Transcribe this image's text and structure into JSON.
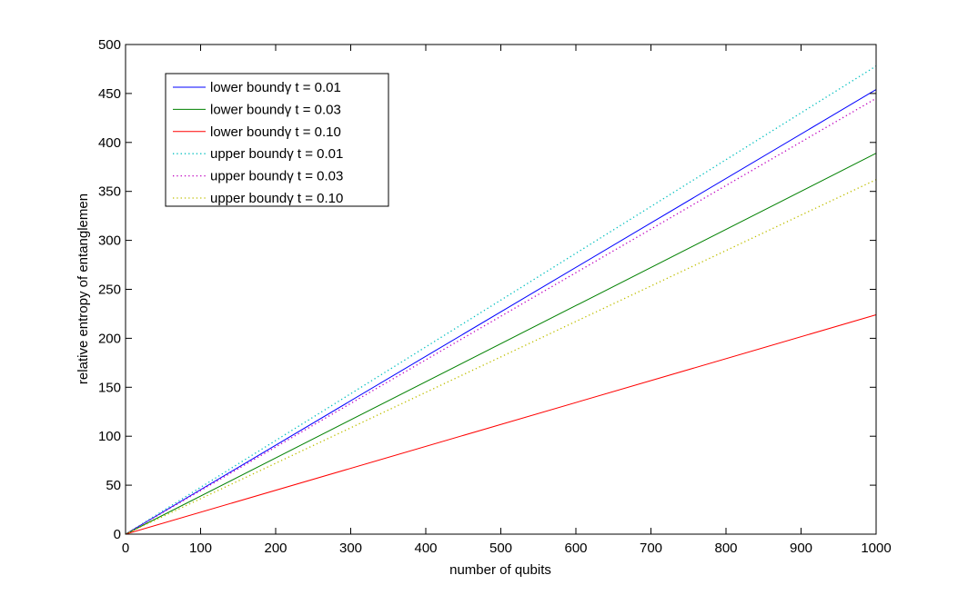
{
  "chart_data": {
    "type": "line",
    "title": "",
    "xlabel": "number of qubits",
    "ylabel": "relative entropy of entanglemen",
    "xlim": [
      0,
      1000
    ],
    "ylim": [
      0,
      500
    ],
    "xticks": [
      0,
      100,
      200,
      300,
      400,
      500,
      600,
      700,
      800,
      900,
      1000
    ],
    "yticks": [
      0,
      50,
      100,
      150,
      200,
      250,
      300,
      350,
      400,
      450,
      500
    ],
    "grid": false,
    "legend_position": "top-left",
    "series": [
      {
        "name": "lower boundγ t = 0.01",
        "color": "#0000ff",
        "style": "solid",
        "x": [
          0,
          1000
        ],
        "y": [
          0,
          454
        ]
      },
      {
        "name": "lower boundγ t = 0.03",
        "color": "#008000",
        "style": "solid",
        "x": [
          0,
          1000
        ],
        "y": [
          0,
          389
        ]
      },
      {
        "name": "lower boundγ t = 0.10",
        "color": "#ff0000",
        "style": "solid",
        "x": [
          0,
          1000
        ],
        "y": [
          0,
          224
        ]
      },
      {
        "name": "upper boundγ t = 0.01",
        "color": "#00bfbf",
        "style": "dotted",
        "x": [
          0,
          1000
        ],
        "y": [
          0,
          478
        ]
      },
      {
        "name": "upper boundγ t = 0.03",
        "color": "#bf00bf",
        "style": "dotted",
        "x": [
          0,
          1000
        ],
        "y": [
          0,
          445
        ]
      },
      {
        "name": "upper boundγ t = 0.10",
        "color": "#bfbf00",
        "style": "dotted",
        "x": [
          0,
          1000
        ],
        "y": [
          0,
          362
        ]
      }
    ]
  }
}
